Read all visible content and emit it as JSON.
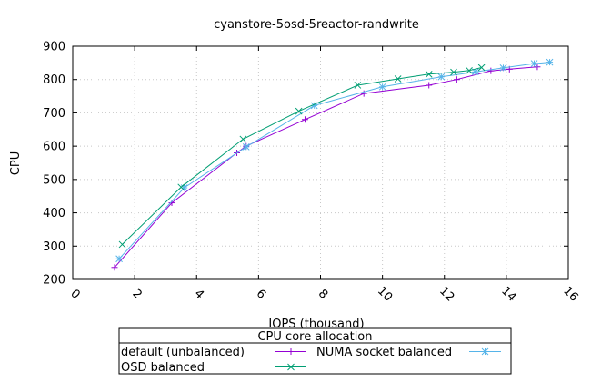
{
  "chart_data": {
    "type": "line",
    "title": "cyanstore-5osd-5reactor-randwrite",
    "xlabel": "IOPS (thousand)",
    "ylabel": "CPU",
    "xlim": [
      0,
      16
    ],
    "ylim": [
      200,
      900
    ],
    "xticks": [
      0,
      2,
      4,
      6,
      8,
      10,
      12,
      14,
      16
    ],
    "yticks": [
      200,
      300,
      400,
      500,
      600,
      700,
      800,
      900
    ],
    "grid": true,
    "legend": {
      "title": "CPU core allocation",
      "placement": "bottom-center"
    },
    "series": [
      {
        "name": "default (unbalanced)",
        "color": "#9400d3",
        "marker": "plus",
        "x": [
          1.35,
          3.2,
          5.3,
          5.6,
          7.5,
          9.4,
          11.5,
          12.4,
          13.5,
          14.1,
          15.0
        ],
        "y": [
          236,
          430,
          580,
          600,
          680,
          758,
          783,
          800,
          826,
          831,
          838
        ]
      },
      {
        "name": "NUMA socket balanced",
        "color": "#56b4e9",
        "marker": "star",
        "x": [
          1.5,
          3.6,
          5.6,
          7.8,
          10.0,
          11.9,
          13.0,
          13.9,
          14.9,
          15.4
        ],
        "y": [
          262,
          475,
          598,
          722,
          778,
          808,
          823,
          835,
          848,
          852
        ]
      },
      {
        "name": "OSD balanced",
        "color": "#009e73",
        "marker": "cross",
        "x": [
          1.6,
          3.5,
          5.5,
          7.3,
          9.2,
          10.5,
          11.5,
          12.3,
          12.8,
          13.2
        ],
        "y": [
          305,
          477,
          621,
          705,
          783,
          802,
          816,
          822,
          827,
          836
        ]
      }
    ]
  }
}
